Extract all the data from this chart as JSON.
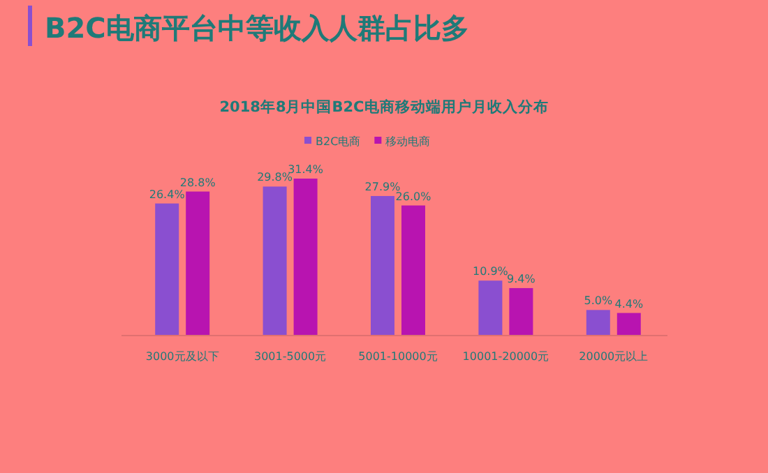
{
  "chart_data": {
    "type": "bar",
    "title": "B2C电商平台中等收入人群占比多",
    "subtitle": "2018年8月中国B2C电商移动端用户月收入分布",
    "categories": [
      "3000元及以下",
      "3001-5000元",
      "5001-10000元",
      "10001-20000元",
      "20000元以上"
    ],
    "series": [
      {
        "name": "B2C电商",
        "color": "#8a4fd0",
        "values": [
          26.4,
          29.8,
          27.9,
          10.9,
          5.0
        ],
        "value_labels": [
          "26.4%",
          "29.8%",
          "27.9%",
          "10.9%",
          "5.0%"
        ]
      },
      {
        "name": "移动电商",
        "color": "#b814b0",
        "values": [
          28.8,
          31.4,
          26.0,
          9.4,
          4.4
        ],
        "value_labels": [
          "28.8%",
          "31.4%",
          "26.0%",
          "9.4%",
          "4.4%"
        ]
      }
    ],
    "legend": "top"
  }
}
